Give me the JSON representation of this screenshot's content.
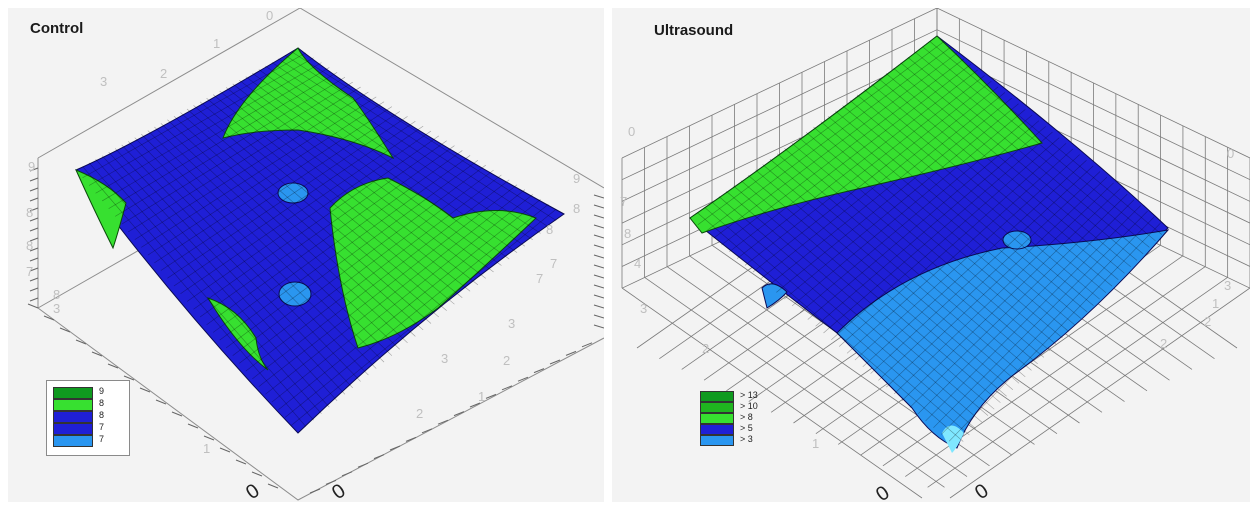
{
  "chart_data": [
    {
      "type": "surface3d",
      "title": "Control",
      "grid": false,
      "colors": [
        "#37e030",
        "#1f1fd6",
        "#2a96f0"
      ],
      "legend": {
        "placement": "bottom-left",
        "entries": [
          {
            "label": "9",
            "color": "#0f9a1f"
          },
          {
            "label": "8",
            "color": "#37e030"
          },
          {
            "label": "8",
            "color": "#1f1fd6"
          },
          {
            "label": "7",
            "color": "#1f1fd6"
          },
          {
            "label": "7",
            "color": "#2a96f0"
          }
        ]
      },
      "axis_tick_labels": {
        "left_axis": [
          "9",
          "8",
          "8",
          "7",
          "8",
          "3"
        ],
        "back_axis": [
          "3",
          "2",
          "1",
          "0"
        ],
        "right_axis": [
          "9",
          "8",
          "8",
          "7",
          "7",
          "3",
          "2",
          "1"
        ],
        "front_axis": [
          "3",
          "2",
          "1",
          "0",
          "0"
        ]
      }
    },
    {
      "type": "surface3d",
      "title": "Ultrasound",
      "grid": true,
      "colors": [
        "#37e030",
        "#1f1fd6",
        "#2a96f0",
        "#7fe7ff"
      ],
      "legend": {
        "placement": "bottom-left",
        "entries": [
          {
            "label": "> 13",
            "color": "#0f9a1f"
          },
          {
            "label": "> 10",
            "color": "#1fb51f"
          },
          {
            "label": "> 8",
            "color": "#37e030"
          },
          {
            "label": "> 5",
            "color": "#1f1fd6"
          },
          {
            "label": "> 3",
            "color": "#2a96f0"
          }
        ]
      },
      "axis_tick_labels": {
        "left_axis": [
          "0",
          "7",
          "8",
          "4",
          "3",
          "2",
          "1"
        ],
        "right_axis": [
          "0",
          "1",
          "2",
          "3"
        ],
        "front_axis": [
          "0",
          "0",
          "2"
        ]
      }
    }
  ]
}
